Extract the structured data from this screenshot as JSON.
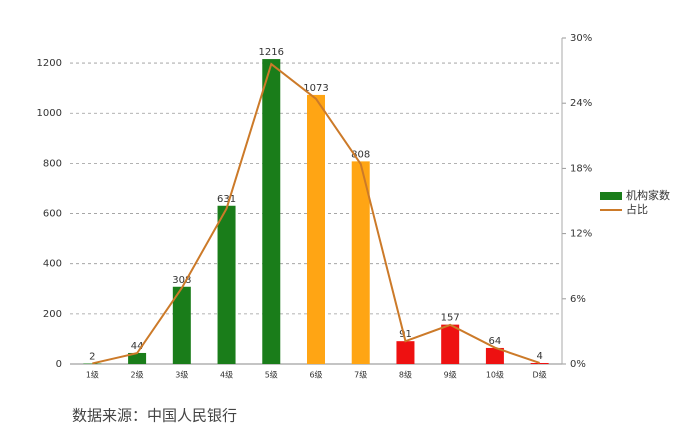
{
  "chart_data": {
    "type": "bar-line",
    "source": "数据来源：中国人民银行",
    "categories": [
      "1级",
      "2级",
      "3级",
      "4级",
      "5级",
      "6级",
      "7级",
      "8级",
      "9级",
      "10级",
      "D级"
    ],
    "series": [
      {
        "name": "机构家数",
        "type": "bar",
        "color": "#1a7d1a",
        "colors": [
          "#1a7d1a",
          "#1a7d1a",
          "#1a7d1a",
          "#1a7d1a",
          "#1a7d1a",
          "#ffa514",
          "#ffa514",
          "#ee1111",
          "#ee1111",
          "#ee1111",
          "#ee1111"
        ],
        "values": [
          2,
          44,
          308,
          631,
          1216,
          1073,
          808,
          91,
          157,
          64,
          4
        ]
      },
      {
        "name": "占比",
        "type": "line",
        "axis": "y2",
        "color": "#cc7a29",
        "values": [
          0.05,
          1.0,
          7.0,
          14.3,
          27.6,
          24.4,
          18.4,
          2.1,
          3.6,
          1.5,
          0.1
        ]
      }
    ],
    "ylim": [
      0,
      1300
    ],
    "yticks": [
      0,
      200,
      400,
      600,
      800,
      1000,
      1200
    ],
    "y2lim": [
      0,
      30
    ],
    "y2ticks": [
      {
        "value": 0,
        "label": "0%"
      },
      {
        "value": 6,
        "label": "6%"
      },
      {
        "value": 12,
        "label": "12%"
      },
      {
        "value": 18,
        "label": "18%"
      },
      {
        "value": 24,
        "label": "24%"
      },
      {
        "value": 30,
        "label": "30%"
      }
    ],
    "grid": true
  }
}
